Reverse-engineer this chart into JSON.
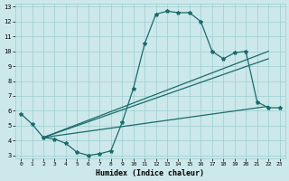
{
  "xlabel": "Humidex (Indice chaleur)",
  "xlim": [
    -0.5,
    23.5
  ],
  "ylim": [
    2.8,
    13.2
  ],
  "yticks": [
    3,
    4,
    5,
    6,
    7,
    8,
    9,
    10,
    11,
    12,
    13
  ],
  "xticks": [
    0,
    1,
    2,
    3,
    4,
    5,
    6,
    7,
    8,
    9,
    10,
    11,
    12,
    13,
    14,
    15,
    16,
    17,
    18,
    19,
    20,
    21,
    22,
    23
  ],
  "bg_color": "#cce8ea",
  "grid_color": "#9ecdd0",
  "line_color": "#1a6b6b",
  "curve_x": [
    0,
    1,
    2,
    3,
    4,
    5,
    6,
    7,
    8,
    9,
    10,
    11,
    12,
    13,
    14,
    15,
    16,
    17,
    18,
    19,
    20,
    21,
    22,
    23
  ],
  "curve_y": [
    5.8,
    5.1,
    4.2,
    4.1,
    3.8,
    3.2,
    3.0,
    3.1,
    3.3,
    5.2,
    7.5,
    10.5,
    12.5,
    12.7,
    12.6,
    12.6,
    12.0,
    10.0,
    9.5,
    9.9,
    10.0,
    6.6,
    6.2,
    6.2
  ],
  "line2_x": [
    2,
    22
  ],
  "line2_y": [
    4.2,
    10.0
  ],
  "line3_x": [
    2,
    22
  ],
  "line3_y": [
    4.2,
    9.5
  ],
  "line4_x": [
    2,
    22
  ],
  "line4_y": [
    4.2,
    6.3
  ]
}
